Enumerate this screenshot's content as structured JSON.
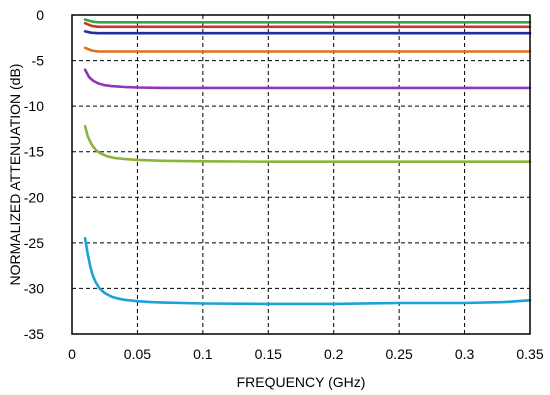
{
  "chart_data": {
    "type": "line",
    "xlabel": "FREQUENCY (GHz)",
    "ylabel": "NORMALIZED ATTENUATION (dB)",
    "xlim": [
      0,
      0.35
    ],
    "ylim": [
      -35,
      0
    ],
    "x_ticks": [
      "0",
      "0.05",
      "0.1",
      "0.15",
      "0.2",
      "0.25",
      "0.3",
      "0.35"
    ],
    "y_ticks": [
      "0",
      "-5",
      "-10",
      "-15",
      "-20",
      "-25",
      "-30",
      "-35"
    ],
    "grid": true,
    "series": [
      {
        "color": "#3fa047",
        "x": [
          0.01,
          0.015,
          0.02,
          0.05,
          0.1,
          0.2,
          0.3,
          0.35
        ],
        "y": [
          -0.5,
          -0.7,
          -0.8,
          -0.8,
          -0.8,
          -0.8,
          -0.8,
          -0.8
        ]
      },
      {
        "color": "#c0392b",
        "x": [
          0.01,
          0.015,
          0.02,
          0.05,
          0.1,
          0.2,
          0.3,
          0.35
        ],
        "y": [
          -0.9,
          -1.2,
          -1.3,
          -1.3,
          -1.3,
          -1.3,
          -1.3,
          -1.3
        ]
      },
      {
        "color": "#1f2f9e",
        "x": [
          0.01,
          0.015,
          0.02,
          0.05,
          0.1,
          0.2,
          0.3,
          0.35
        ],
        "y": [
          -1.8,
          -1.95,
          -2.0,
          -2.0,
          -2.0,
          -2.0,
          -2.0,
          -2.0
        ]
      },
      {
        "color": "#e07020",
        "x": [
          0.01,
          0.015,
          0.02,
          0.03,
          0.05,
          0.1,
          0.2,
          0.3,
          0.35
        ],
        "y": [
          -3.6,
          -3.9,
          -4.0,
          -4.0,
          -4.0,
          -4.0,
          -4.0,
          -4.0,
          -4.0
        ]
      },
      {
        "color": "#8e35b8",
        "x": [
          0.01,
          0.013,
          0.016,
          0.02,
          0.025,
          0.03,
          0.04,
          0.05,
          0.07,
          0.1,
          0.2,
          0.3,
          0.35
        ],
        "y": [
          -6.0,
          -6.8,
          -7.2,
          -7.5,
          -7.7,
          -7.8,
          -7.9,
          -7.95,
          -8.0,
          -8.0,
          -8.0,
          -8.0,
          -8.0
        ]
      },
      {
        "color": "#8db33a",
        "x": [
          0.01,
          0.012,
          0.015,
          0.018,
          0.022,
          0.027,
          0.033,
          0.04,
          0.05,
          0.07,
          0.1,
          0.15,
          0.2,
          0.25,
          0.3,
          0.35
        ],
        "y": [
          -12.2,
          -13.3,
          -14.2,
          -14.8,
          -15.2,
          -15.5,
          -15.7,
          -15.8,
          -15.9,
          -16.0,
          -16.05,
          -16.1,
          -16.1,
          -16.1,
          -16.1,
          -16.1
        ]
      },
      {
        "color": "#1aa3d6",
        "x": [
          0.01,
          0.012,
          0.014,
          0.016,
          0.018,
          0.021,
          0.025,
          0.03,
          0.035,
          0.04,
          0.05,
          0.06,
          0.07,
          0.085,
          0.1,
          0.15,
          0.2,
          0.25,
          0.3,
          0.33,
          0.35
        ],
        "y": [
          -24.5,
          -26.2,
          -27.6,
          -28.6,
          -29.3,
          -30.0,
          -30.5,
          -30.9,
          -31.1,
          -31.25,
          -31.4,
          -31.5,
          -31.55,
          -31.6,
          -31.65,
          -31.7,
          -31.7,
          -31.6,
          -31.6,
          -31.5,
          -31.3
        ]
      }
    ]
  }
}
